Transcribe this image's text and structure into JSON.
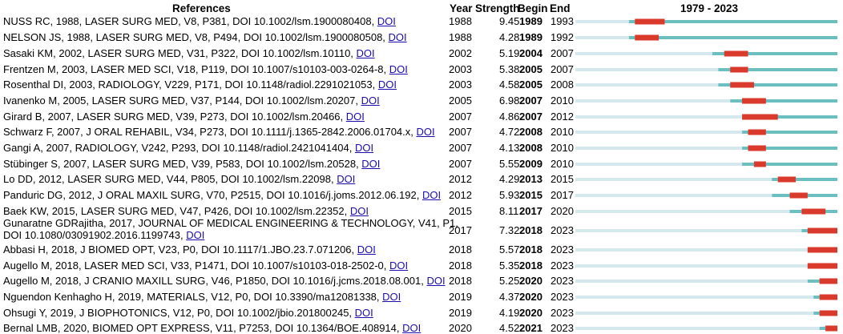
{
  "header": {
    "references": "References",
    "year": "Year",
    "strength": "Strength",
    "begin": "Begin",
    "end": "End",
    "range": "1979 - 2023"
  },
  "link_text": "DOI",
  "chart_data": {
    "type": "table",
    "timeline_range": [
      1979,
      2023
    ],
    "colors": {
      "burst": "#d93a2b",
      "active": "#6bbfc0",
      "inactive": "#d4e8ee"
    },
    "rows": [
      {
        "ref": "NUSS RC, 1988, LASER SURG MED, V8, P381, DOI 10.1002/lsm.1900080408, ",
        "year": "1988",
        "strength": "9.45",
        "begin": "1989",
        "end": "1993"
      },
      {
        "ref": "NELSON JS, 1988, LASER SURG MED, V8, P494, DOI 10.1002/lsm.1900080508, ",
        "year": "1988",
        "strength": "4.28",
        "begin": "1989",
        "end": "1992"
      },
      {
        "ref": "Sasaki KM, 2002, LASER SURG MED, V31, P322, DOI 10.1002/lsm.10110, ",
        "year": "2002",
        "strength": "5.19",
        "begin": "2004",
        "end": "2007"
      },
      {
        "ref": "Frentzen M, 2003, LASER MED SCI, V18, P119, DOI 10.1007/s10103-003-0264-8, ",
        "year": "2003",
        "strength": "5.38",
        "begin": "2005",
        "end": "2007"
      },
      {
        "ref": "Rosenthal DI, 2003, RADIOLOGY, V229, P171, DOI 10.1148/radiol.2291021053, ",
        "year": "2003",
        "strength": "4.58",
        "begin": "2005",
        "end": "2008"
      },
      {
        "ref": "Ivanenko M, 2005, LASER SURG MED, V37, P144, DOI 10.1002/lsm.20207, ",
        "year": "2005",
        "strength": "6.98",
        "begin": "2007",
        "end": "2010"
      },
      {
        "ref": "Girard B, 2007, LASER SURG MED, V39, P273, DOI 10.1002/lsm.20466, ",
        "year": "2007",
        "strength": "4.86",
        "begin": "2007",
        "end": "2012"
      },
      {
        "ref": "Schwarz F, 2007, J ORAL REHABIL, V34, P273, DOI 10.1111/j.1365-2842.2006.01704.x, ",
        "year": "2007",
        "strength": "4.72",
        "begin": "2008",
        "end": "2010"
      },
      {
        "ref": "Gangi A, 2007, RADIOLOGY, V242, P293, DOI 10.1148/radiol.2421041404, ",
        "year": "2007",
        "strength": "4.13",
        "begin": "2008",
        "end": "2010"
      },
      {
        "ref": "Stübinger S, 2007, LASER SURG MED, V39, P583, DOI 10.1002/lsm.20528, ",
        "year": "2007",
        "strength": "5.55",
        "begin": "2009",
        "end": "2010"
      },
      {
        "ref": "Lo DD, 2012, LASER SURG MED, V44, P805, DOI 10.1002/lsm.22098, ",
        "year": "2012",
        "strength": "4.29",
        "begin": "2013",
        "end": "2015"
      },
      {
        "ref": "Panduric DG, 2012, J ORAL MAXIL SURG, V70, P2515, DOI 10.1016/j.joms.2012.06.192, ",
        "year": "2012",
        "strength": "5.93",
        "begin": "2015",
        "end": "2017"
      },
      {
        "ref": "Baek KW, 2015, LASER SURG MED, V47, P426, DOI 10.1002/lsm.22352, ",
        "year": "2015",
        "strength": "8.11",
        "begin": "2017",
        "end": "2020"
      },
      {
        "ref": "Gunaratne GDRajitha, 2017, JOURNAL OF MEDICAL ENGINEERING & TECHNOLOGY, V41, P1,",
        "ref_line2": "DOI 10.1080/03091902.2016.1199743, ",
        "year": "2017",
        "strength": "7.32",
        "begin": "2018",
        "end": "2023"
      },
      {
        "ref": "Abbasi H, 2018, J BIOMED OPT, V23, P0, DOI 10.1117/1.JBO.23.7.071206, ",
        "year": "2018",
        "strength": "5.57",
        "begin": "2018",
        "end": "2023"
      },
      {
        "ref": "Augello M, 2018, LASER MED SCI, V33, P1471, DOI 10.1007/s10103-018-2502-0, ",
        "year": "2018",
        "strength": "5.35",
        "begin": "2018",
        "end": "2023"
      },
      {
        "ref": "Augello M, 2018, J CRANIO MAXILL SURG, V46, P1850, DOI 10.1016/j.jcms.2018.08.001, ",
        "year": "2018",
        "strength": "5.25",
        "begin": "2020",
        "end": "2023"
      },
      {
        "ref": "Nguendon Kenhagho H, 2019, MATERIALS, V12, P0, DOI 10.3390/ma12081338, ",
        "year": "2019",
        "strength": "4.37",
        "begin": "2020",
        "end": "2023"
      },
      {
        "ref": "Ohsugi Y, 2019, J BIOPHOTONICS, V12, P0, DOI 10.1002/jbio.201800245, ",
        "year": "2019",
        "strength": "4.19",
        "begin": "2020",
        "end": "2023"
      },
      {
        "ref": "Bernal LMB, 2020, BIOMED OPT EXPRESS, V11, P7253, DOI 10.1364/BOE.408914, ",
        "year": "2020",
        "strength": "4.52",
        "begin": "2021",
        "end": "2023"
      }
    ]
  }
}
